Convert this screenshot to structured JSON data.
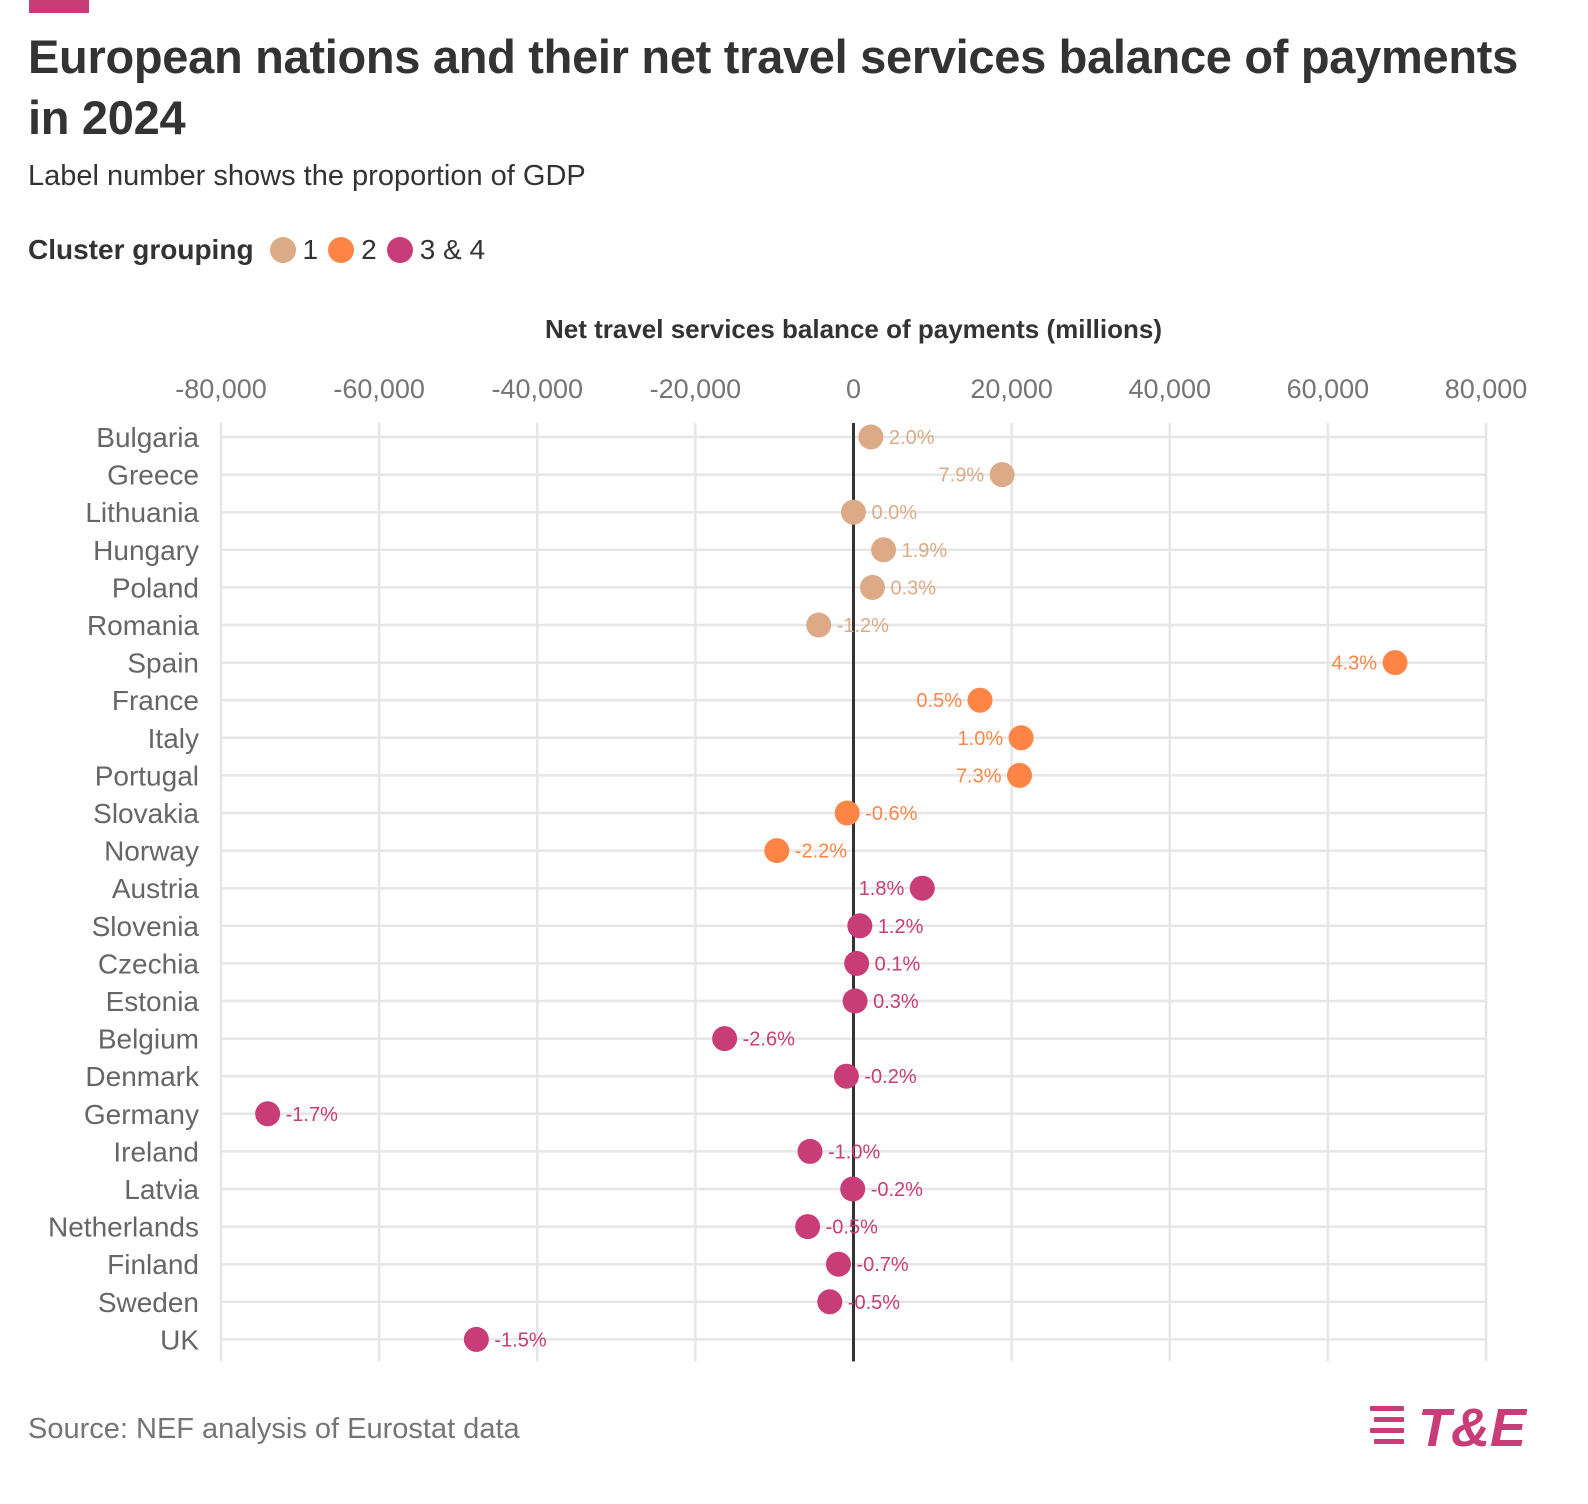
{
  "title": "European nations and their net travel services balance of payments in 2024",
  "subtitle": "Label number shows the proportion of GDP",
  "legend": {
    "title": "Cluster grouping",
    "items": [
      {
        "label": "1",
        "color": "#dcaa86"
      },
      {
        "label": "2",
        "color": "#ff8547"
      },
      {
        "label": "3 & 4",
        "color": "#c83c78"
      }
    ]
  },
  "source": "Source: NEF analysis of Eurostat data",
  "logo": {
    "text": "T&E",
    "color": "#c83c78"
  },
  "brand_color": "#c83c78",
  "chart_data": {
    "type": "scatter",
    "xlabel": "Net travel services balance of payments (millions)",
    "ylabel": "",
    "xlim": [
      -80000,
      80000
    ],
    "xticks": [
      -80000,
      -60000,
      -40000,
      -20000,
      0,
      20000,
      40000,
      60000,
      80000
    ],
    "xtick_labels": [
      "-80,000",
      "-60,000",
      "-40,000",
      "-20,000",
      "0",
      "20,000",
      "40,000",
      "60,000",
      "80,000"
    ],
    "grid": true,
    "points": [
      {
        "country": "Bulgaria",
        "value": 2200,
        "label": "2.0%",
        "cluster": "1"
      },
      {
        "country": "Greece",
        "value": 18800,
        "label": "7.9%",
        "cluster": "1"
      },
      {
        "country": "Lithuania",
        "value": 0,
        "label": "0.0%",
        "cluster": "1"
      },
      {
        "country": "Hungary",
        "value": 3800,
        "label": "1.9%",
        "cluster": "1"
      },
      {
        "country": "Poland",
        "value": 2400,
        "label": "0.3%",
        "cluster": "1"
      },
      {
        "country": "Romania",
        "value": -4400,
        "label": "-1.2%",
        "cluster": "1"
      },
      {
        "country": "Spain",
        "value": 68500,
        "label": "4.3%",
        "cluster": "2"
      },
      {
        "country": "France",
        "value": 16000,
        "label": "0.5%",
        "cluster": "2"
      },
      {
        "country": "Italy",
        "value": 21200,
        "label": "1.0%",
        "cluster": "2"
      },
      {
        "country": "Portugal",
        "value": 21000,
        "label": "7.3%",
        "cluster": "2"
      },
      {
        "country": "Slovakia",
        "value": -800,
        "label": "-0.6%",
        "cluster": "2"
      },
      {
        "country": "Norway",
        "value": -9700,
        "label": "-2.2%",
        "cluster": "2"
      },
      {
        "country": "Austria",
        "value": 8700,
        "label": "1.8%",
        "cluster": "3 & 4"
      },
      {
        "country": "Slovenia",
        "value": 800,
        "label": "1.2%",
        "cluster": "3 & 4"
      },
      {
        "country": "Czechia",
        "value": 400,
        "label": "0.1%",
        "cluster": "3 & 4"
      },
      {
        "country": "Estonia",
        "value": 200,
        "label": "0.3%",
        "cluster": "3 & 4"
      },
      {
        "country": "Belgium",
        "value": -16300,
        "label": "-2.6%",
        "cluster": "3 & 4"
      },
      {
        "country": "Denmark",
        "value": -900,
        "label": "-0.2%",
        "cluster": "3 & 4"
      },
      {
        "country": "Germany",
        "value": -74100,
        "label": "-1.7%",
        "cluster": "3 & 4"
      },
      {
        "country": "Ireland",
        "value": -5500,
        "label": "-1.0%",
        "cluster": "3 & 4"
      },
      {
        "country": "Latvia",
        "value": -100,
        "label": "-0.2%",
        "cluster": "3 & 4"
      },
      {
        "country": "Netherlands",
        "value": -5800,
        "label": "-0.5%",
        "cluster": "3 & 4"
      },
      {
        "country": "Finland",
        "value": -1900,
        "label": "-0.7%",
        "cluster": "3 & 4"
      },
      {
        "country": "Sweden",
        "value": -3000,
        "label": "-0.5%",
        "cluster": "3 & 4"
      },
      {
        "country": "UK",
        "value": -47700,
        "label": "-1.5%",
        "cluster": "3 & 4"
      }
    ]
  }
}
